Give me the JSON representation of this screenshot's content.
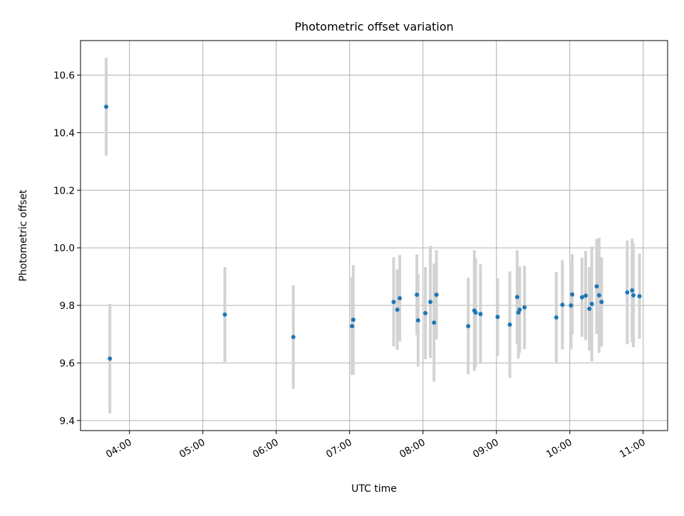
{
  "chart_data": {
    "type": "scatter",
    "title": "Photometric offset variation",
    "xlabel": "UTC time",
    "ylabel": "Photometric offset",
    "x_unit": "hours UTC",
    "xlim": [
      "03:20",
      "11:20"
    ],
    "ylim": [
      9.365,
      10.72
    ],
    "x_ticks": [
      "04:00",
      "05:00",
      "06:00",
      "07:00",
      "08:00",
      "09:00",
      "10:00",
      "11:00"
    ],
    "y_ticks": [
      9.4,
      9.6,
      9.8,
      10.0,
      10.2,
      10.4,
      10.6
    ],
    "grid": true,
    "point_color": "#1f77b4",
    "errorbar_color": "#d3d3d3",
    "points": [
      {
        "t": "03:41",
        "y": 10.49,
        "err": 0.17
      },
      {
        "t": "03:44",
        "y": 9.615,
        "err": 0.19
      },
      {
        "t": "05:18",
        "y": 9.768,
        "err": 0.165
      },
      {
        "t": "06:14",
        "y": 9.69,
        "err": 0.18
      },
      {
        "t": "07:02",
        "y": 9.728,
        "err": 0.17
      },
      {
        "t": "07:03",
        "y": 9.75,
        "err": 0.19
      },
      {
        "t": "07:36",
        "y": 9.812,
        "err": 0.155
      },
      {
        "t": "07:39",
        "y": 9.785,
        "err": 0.14
      },
      {
        "t": "07:41",
        "y": 9.825,
        "err": 0.15
      },
      {
        "t": "07:55",
        "y": 9.837,
        "err": 0.14
      },
      {
        "t": "07:56",
        "y": 9.748,
        "err": 0.16
      },
      {
        "t": "08:02",
        "y": 9.773,
        "err": 0.16
      },
      {
        "t": "08:06",
        "y": 9.812,
        "err": 0.195
      },
      {
        "t": "08:09",
        "y": 9.74,
        "err": 0.205
      },
      {
        "t": "08:11",
        "y": 9.837,
        "err": 0.155
      },
      {
        "t": "08:37",
        "y": 9.728,
        "err": 0.168
      },
      {
        "t": "08:42",
        "y": 9.782,
        "err": 0.21
      },
      {
        "t": "08:43",
        "y": 9.775,
        "err": 0.19
      },
      {
        "t": "08:47",
        "y": 9.77,
        "err": 0.173
      },
      {
        "t": "09:01",
        "y": 9.76,
        "err": 0.135
      },
      {
        "t": "09:11",
        "y": 9.733,
        "err": 0.185
      },
      {
        "t": "09:17",
        "y": 9.829,
        "err": 0.163
      },
      {
        "t": "09:18",
        "y": 9.775,
        "err": 0.16
      },
      {
        "t": "09:19",
        "y": 9.785,
        "err": 0.15
      },
      {
        "t": "09:23",
        "y": 9.793,
        "err": 0.145
      },
      {
        "t": "09:49",
        "y": 9.758,
        "err": 0.158
      },
      {
        "t": "09:54",
        "y": 9.802,
        "err": 0.155
      },
      {
        "t": "10:01",
        "y": 9.8,
        "err": 0.152
      },
      {
        "t": "10:02",
        "y": 9.838,
        "err": 0.14
      },
      {
        "t": "10:10",
        "y": 9.828,
        "err": 0.138
      },
      {
        "t": "10:13",
        "y": 9.834,
        "err": 0.155
      },
      {
        "t": "10:16",
        "y": 9.788,
        "err": 0.145
      },
      {
        "t": "10:18",
        "y": 9.805,
        "err": 0.2
      },
      {
        "t": "10:22",
        "y": 9.866,
        "err": 0.165
      },
      {
        "t": "10:24",
        "y": 9.835,
        "err": 0.2
      },
      {
        "t": "10:26",
        "y": 9.812,
        "err": 0.155
      },
      {
        "t": "10:47",
        "y": 9.845,
        "err": 0.18
      },
      {
        "t": "10:51",
        "y": 9.852,
        "err": 0.18
      },
      {
        "t": "10:52",
        "y": 9.835,
        "err": 0.18
      },
      {
        "t": "10:57",
        "y": 9.832,
        "err": 0.148
      }
    ]
  }
}
